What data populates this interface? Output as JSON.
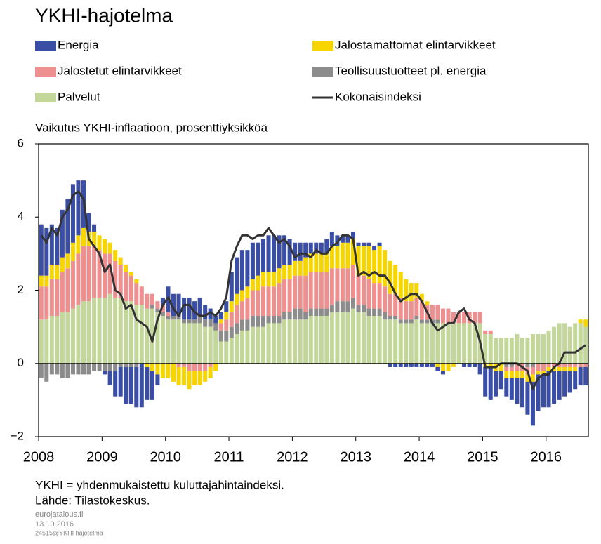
{
  "chart_data": {
    "type": "bar",
    "title": "YKHI-hajotelma",
    "y_axis_label": "Vaikutus YKHI-inflaatioon, prosenttiyksikköä",
    "footnotes": [
      "YKHI = yhdenmukaistettu kuluttajahintaindeksi.",
      "Lähde: Tilastokeskus."
    ],
    "credits": [
      "eurojatalous.fi",
      "13.10.2016",
      "24515@YKHI hajotelma"
    ],
    "stacked": true,
    "ylim": [
      -2,
      6
    ],
    "yticks": [
      {
        "value": -2,
        "label": "−2"
      },
      0,
      2,
      4,
      6
    ],
    "categories": [
      "2008",
      null,
      null,
      null,
      null,
      null,
      null,
      null,
      null,
      null,
      null,
      null,
      "2009",
      null,
      null,
      null,
      null,
      null,
      null,
      null,
      null,
      null,
      null,
      null,
      "2010",
      null,
      null,
      null,
      null,
      null,
      null,
      null,
      null,
      null,
      null,
      null,
      "2011",
      null,
      null,
      null,
      null,
      null,
      null,
      null,
      null,
      null,
      null,
      null,
      "2012",
      null,
      null,
      null,
      null,
      null,
      null,
      null,
      null,
      null,
      null,
      null,
      "2013",
      null,
      null,
      null,
      null,
      null,
      null,
      null,
      null,
      null,
      null,
      null,
      "2014",
      null,
      null,
      null,
      null,
      null,
      null,
      null,
      null,
      null,
      null,
      null,
      "2015",
      null,
      null,
      null,
      null,
      null,
      null,
      null,
      null,
      null,
      null,
      null,
      "2016",
      null,
      null,
      null,
      null,
      null,
      null,
      null
    ],
    "series": [
      {
        "name": "Palvelut",
        "color": "#c3d79b",
        "type": "bar",
        "values": [
          1.2,
          1.2,
          1.3,
          1.3,
          1.4,
          1.4,
          1.5,
          1.6,
          1.7,
          1.7,
          1.8,
          1.8,
          1.8,
          1.9,
          1.8,
          1.8,
          1.7,
          1.7,
          1.6,
          1.6,
          1.5,
          1.5,
          1.4,
          1.3,
          1.2,
          1.2,
          1.2,
          1.1,
          1.1,
          1.1,
          1.1,
          1.0,
          1.0,
          0.9,
          0.6,
          0.6,
          0.7,
          0.8,
          0.9,
          0.9,
          1.0,
          1.0,
          1.0,
          1.1,
          1.1,
          1.1,
          1.2,
          1.2,
          1.2,
          1.2,
          1.2,
          1.3,
          1.3,
          1.3,
          1.3,
          1.4,
          1.4,
          1.4,
          1.4,
          1.5,
          1.4,
          1.4,
          1.3,
          1.3,
          1.3,
          1.2,
          1.2,
          1.2,
          1.1,
          1.1,
          1.1,
          1.2,
          1.1,
          1.1,
          1.1,
          1.1,
          1.1,
          1.1,
          1.1,
          1.1,
          1.1,
          1.1,
          1.1,
          1.1,
          0.8,
          0.8,
          0.7,
          0.7,
          0.7,
          0.7,
          0.8,
          0.7,
          0.7,
          0.8,
          0.8,
          0.8,
          0.9,
          1.0,
          1.1,
          1.1,
          1.0,
          1.1,
          1.1,
          1.0
        ]
      },
      {
        "name": "Teollisuustuotteet pl. energia",
        "color": "#8c8c8c",
        "type": "bar",
        "values": [
          -0.4,
          -0.5,
          -0.3,
          -0.3,
          -0.4,
          -0.4,
          -0.3,
          -0.3,
          -0.3,
          -0.3,
          -0.2,
          -0.2,
          -0.2,
          -0.2,
          -0.2,
          -0.1,
          -0.1,
          -0.1,
          -0.1,
          0.0,
          0.0,
          0.1,
          0.1,
          0.1,
          0.1,
          0.1,
          0.1,
          0.1,
          0.1,
          0.1,
          0.2,
          0.2,
          0.2,
          0.2,
          0.3,
          0.3,
          0.3,
          0.3,
          0.3,
          0.3,
          0.3,
          0.3,
          0.3,
          0.2,
          0.2,
          0.2,
          0.2,
          0.2,
          0.3,
          0.3,
          0.2,
          0.2,
          0.2,
          0.2,
          0.2,
          0.2,
          0.3,
          0.3,
          0.3,
          0.3,
          0.2,
          0.2,
          0.2,
          0.2,
          0.2,
          0.2,
          0.1,
          0.1,
          0.1,
          0.1,
          0.1,
          0.1,
          0.1,
          0.1,
          0.1,
          0.1,
          0.0,
          0.0,
          0.0,
          0.0,
          0.0,
          0.0,
          0.0,
          0.0,
          0.0,
          0.0,
          0.0,
          0.0,
          -0.1,
          -0.1,
          0.0,
          0.0,
          -0.1,
          -0.1,
          0.0,
          0.0,
          0.0,
          0.0,
          0.0,
          0.0,
          0.0,
          0.0,
          0.0,
          0.0
        ]
      },
      {
        "name": "Jalostetut elintarvikkeet",
        "color": "#ee9090",
        "type": "bar",
        "values": [
          0.9,
          0.9,
          1.0,
          1.0,
          1.1,
          1.2,
          1.3,
          1.4,
          1.5,
          1.5,
          1.4,
          1.3,
          1.2,
          1.1,
          1.0,
          0.9,
          0.8,
          0.7,
          0.6,
          0.5,
          0.4,
          0.3,
          0.2,
          0.2,
          0.1,
          0.0,
          -0.1,
          -0.1,
          -0.2,
          -0.2,
          -0.2,
          -0.2,
          -0.1,
          0.0,
          0.2,
          0.3,
          0.4,
          0.5,
          0.5,
          0.6,
          0.7,
          0.7,
          0.8,
          0.8,
          0.8,
          0.9,
          0.9,
          0.9,
          0.9,
          0.9,
          1.0,
          1.0,
          1.0,
          1.0,
          1.0,
          1.0,
          0.9,
          0.9,
          0.9,
          0.9,
          0.8,
          0.8,
          0.8,
          0.7,
          0.7,
          0.7,
          0.6,
          0.6,
          0.6,
          0.5,
          0.5,
          0.5,
          0.5,
          0.4,
          0.4,
          0.4,
          0.4,
          0.4,
          0.3,
          0.3,
          0.3,
          0.3,
          0.3,
          0.3,
          0.1,
          0.1,
          0.0,
          0.0,
          -0.1,
          -0.1,
          -0.2,
          -0.2,
          -0.2,
          -0.2,
          -0.2,
          -0.2,
          -0.1,
          -0.1,
          -0.1,
          -0.1,
          -0.1,
          -0.1,
          -0.1,
          -0.1
        ]
      },
      {
        "name": "Jalostamattomat elintarvikkeet",
        "color": "#f7d600",
        "type": "bar",
        "values": [
          0.3,
          0.3,
          0.4,
          0.4,
          0.4,
          0.4,
          0.5,
          0.5,
          0.5,
          0.4,
          0.4,
          0.4,
          0.4,
          0.3,
          0.3,
          0.2,
          0.2,
          0.1,
          0.1,
          0.0,
          -0.1,
          -0.2,
          -0.3,
          -0.4,
          -0.4,
          -0.5,
          -0.5,
          -0.5,
          -0.5,
          -0.4,
          -0.4,
          -0.3,
          -0.3,
          -0.2,
          0.1,
          0.2,
          0.3,
          0.3,
          0.3,
          0.3,
          0.3,
          0.4,
          0.4,
          0.4,
          0.4,
          0.4,
          0.4,
          0.4,
          0.4,
          0.4,
          0.5,
          0.5,
          0.5,
          0.5,
          0.5,
          0.6,
          0.6,
          0.7,
          0.7,
          0.7,
          0.8,
          0.8,
          0.9,
          0.9,
          1.0,
          1.0,
          0.9,
          0.8,
          0.7,
          0.6,
          0.5,
          0.4,
          0.2,
          0.1,
          0.0,
          -0.1,
          -0.2,
          -0.2,
          -0.1,
          0.0,
          0.0,
          0.0,
          0.0,
          0.0,
          -0.1,
          -0.1,
          -0.2,
          -0.2,
          -0.2,
          -0.2,
          -0.2,
          -0.2,
          -0.2,
          -0.2,
          -0.1,
          -0.1,
          -0.1,
          -0.1,
          -0.1,
          -0.1,
          -0.1,
          -0.1,
          0.1,
          0.2
        ]
      },
      {
        "name": "Energia",
        "color": "#3b4ea5",
        "type": "bar",
        "values": [
          1.4,
          1.3,
          1.1,
          1.0,
          1.3,
          1.5,
          1.6,
          1.5,
          1.3,
          0.5,
          0.2,
          0.0,
          -0.1,
          -0.4,
          -0.7,
          -0.8,
          -1.0,
          -1.0,
          -1.1,
          -1.2,
          -0.9,
          -0.8,
          -0.3,
          0.2,
          0.7,
          0.6,
          0.6,
          0.6,
          0.6,
          0.5,
          0.5,
          0.4,
          0.3,
          0.2,
          0.2,
          0.3,
          0.8,
          1.0,
          1.1,
          1.0,
          1.0,
          0.9,
          0.9,
          1.0,
          1.0,
          0.9,
          0.8,
          0.7,
          0.5,
          0.5,
          0.4,
          0.3,
          0.3,
          0.3,
          0.4,
          0.4,
          0.3,
          0.2,
          0.2,
          0.2,
          0.1,
          0.1,
          0.1,
          0.1,
          0.1,
          0.0,
          -0.1,
          -0.1,
          -0.1,
          -0.1,
          -0.1,
          -0.1,
          -0.1,
          -0.1,
          -0.1,
          -0.1,
          -0.1,
          0.0,
          0.0,
          0.0,
          -0.1,
          -0.1,
          -0.1,
          -0.3,
          -0.8,
          -0.9,
          -0.7,
          -0.5,
          -0.5,
          -0.6,
          -0.7,
          -0.8,
          -0.9,
          -1.2,
          -1.0,
          -0.9,
          -1.0,
          -0.9,
          -0.8,
          -0.7,
          -0.6,
          -0.5,
          -0.5,
          -0.5
        ]
      },
      {
        "name": "Kokonaisindeksi",
        "color": "#333333",
        "type": "line",
        "values": [
          3.5,
          3.3,
          3.7,
          3.5,
          4.0,
          4.2,
          4.6,
          4.7,
          4.5,
          3.4,
          3.2,
          3.0,
          2.5,
          2.7,
          2.0,
          1.9,
          1.5,
          1.6,
          1.2,
          1.1,
          1.0,
          0.6,
          1.2,
          1.6,
          1.8,
          1.5,
          1.3,
          1.6,
          1.6,
          1.4,
          1.3,
          1.3,
          1.4,
          1.3,
          1.5,
          1.8,
          2.8,
          3.2,
          3.5,
          3.5,
          3.4,
          3.5,
          3.5,
          3.7,
          3.5,
          3.3,
          3.4,
          3.2,
          2.9,
          3.0,
          3.0,
          2.9,
          3.1,
          3.0,
          3.0,
          3.2,
          3.3,
          3.5,
          3.5,
          3.4,
          2.4,
          2.5,
          2.4,
          2.5,
          2.4,
          2.4,
          2.2,
          1.9,
          1.7,
          1.8,
          1.9,
          1.9,
          1.7,
          1.4,
          1.1,
          0.9,
          1.0,
          1.1,
          1.1,
          1.4,
          1.5,
          1.2,
          1.1,
          0.6,
          -0.1,
          -0.1,
          -0.1,
          0.0,
          0.0,
          0.0,
          0.0,
          -0.1,
          -0.2,
          -0.7,
          -0.4,
          -0.3,
          -0.3,
          -0.1,
          0.0,
          0.3,
          0.3,
          0.3,
          0.4,
          0.5
        ]
      }
    ],
    "legend_order": [
      4,
      3,
      2,
      1,
      0,
      5
    ]
  }
}
